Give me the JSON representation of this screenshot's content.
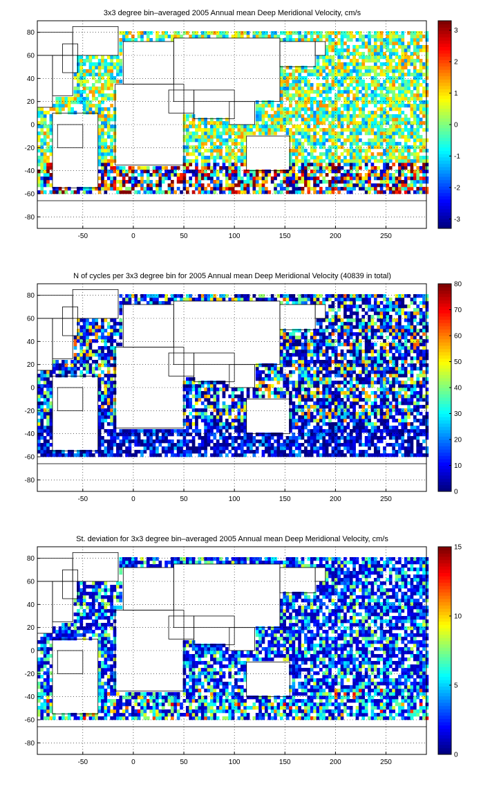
{
  "chart_data": [
    {
      "type": "heatmap",
      "title": "3x3 degree bin–averaged 2005 Annual mean Deep Meridional Velocity, cm/s",
      "x_ticks": [
        -50,
        0,
        50,
        100,
        150,
        200,
        250
      ],
      "y_ticks": [
        -80,
        -60,
        -40,
        -20,
        0,
        20,
        40,
        60,
        80
      ],
      "xlim": [
        -95,
        290
      ],
      "ylim": [
        -90,
        90
      ],
      "bin_size_degrees": 3,
      "colorbar": {
        "ticks": [
          -3,
          -2,
          -1,
          0,
          1,
          2,
          3
        ],
        "range": [
          -3.3,
          3.3
        ],
        "colormap": "jet"
      },
      "grid": "dotted"
    },
    {
      "type": "heatmap",
      "title": "N of cycles per 3x3 degree bin for 2005 Annual mean Deep Meridional Velocity (40839 in total)",
      "x_ticks": [
        -50,
        0,
        50,
        100,
        150,
        200,
        250
      ],
      "y_ticks": [
        -80,
        -60,
        -40,
        -20,
        0,
        20,
        40,
        60,
        80
      ],
      "xlim": [
        -95,
        290
      ],
      "ylim": [
        -90,
        90
      ],
      "bin_size_degrees": 3,
      "total_cycles": 40839,
      "colorbar": {
        "ticks": [
          0,
          10,
          20,
          30,
          40,
          50,
          60,
          70,
          80
        ],
        "range": [
          0,
          80
        ],
        "colormap": "jet"
      },
      "grid": "dotted"
    },
    {
      "type": "heatmap",
      "title": "St. deviation for 3x3 degree bin–averaged 2005 Annual mean Deep Meridional Velocity, cm/s",
      "x_ticks": [
        -50,
        0,
        50,
        100,
        150,
        200,
        250
      ],
      "y_ticks": [
        -80,
        -60,
        -40,
        -20,
        0,
        20,
        40,
        60,
        80
      ],
      "xlim": [
        -95,
        290
      ],
      "ylim": [
        -90,
        90
      ],
      "bin_size_degrees": 3,
      "colorbar": {
        "ticks": [
          0,
          5,
          10,
          15
        ],
        "range": [
          0,
          15
        ],
        "colormap": "jet"
      },
      "grid": "dotted"
    }
  ]
}
